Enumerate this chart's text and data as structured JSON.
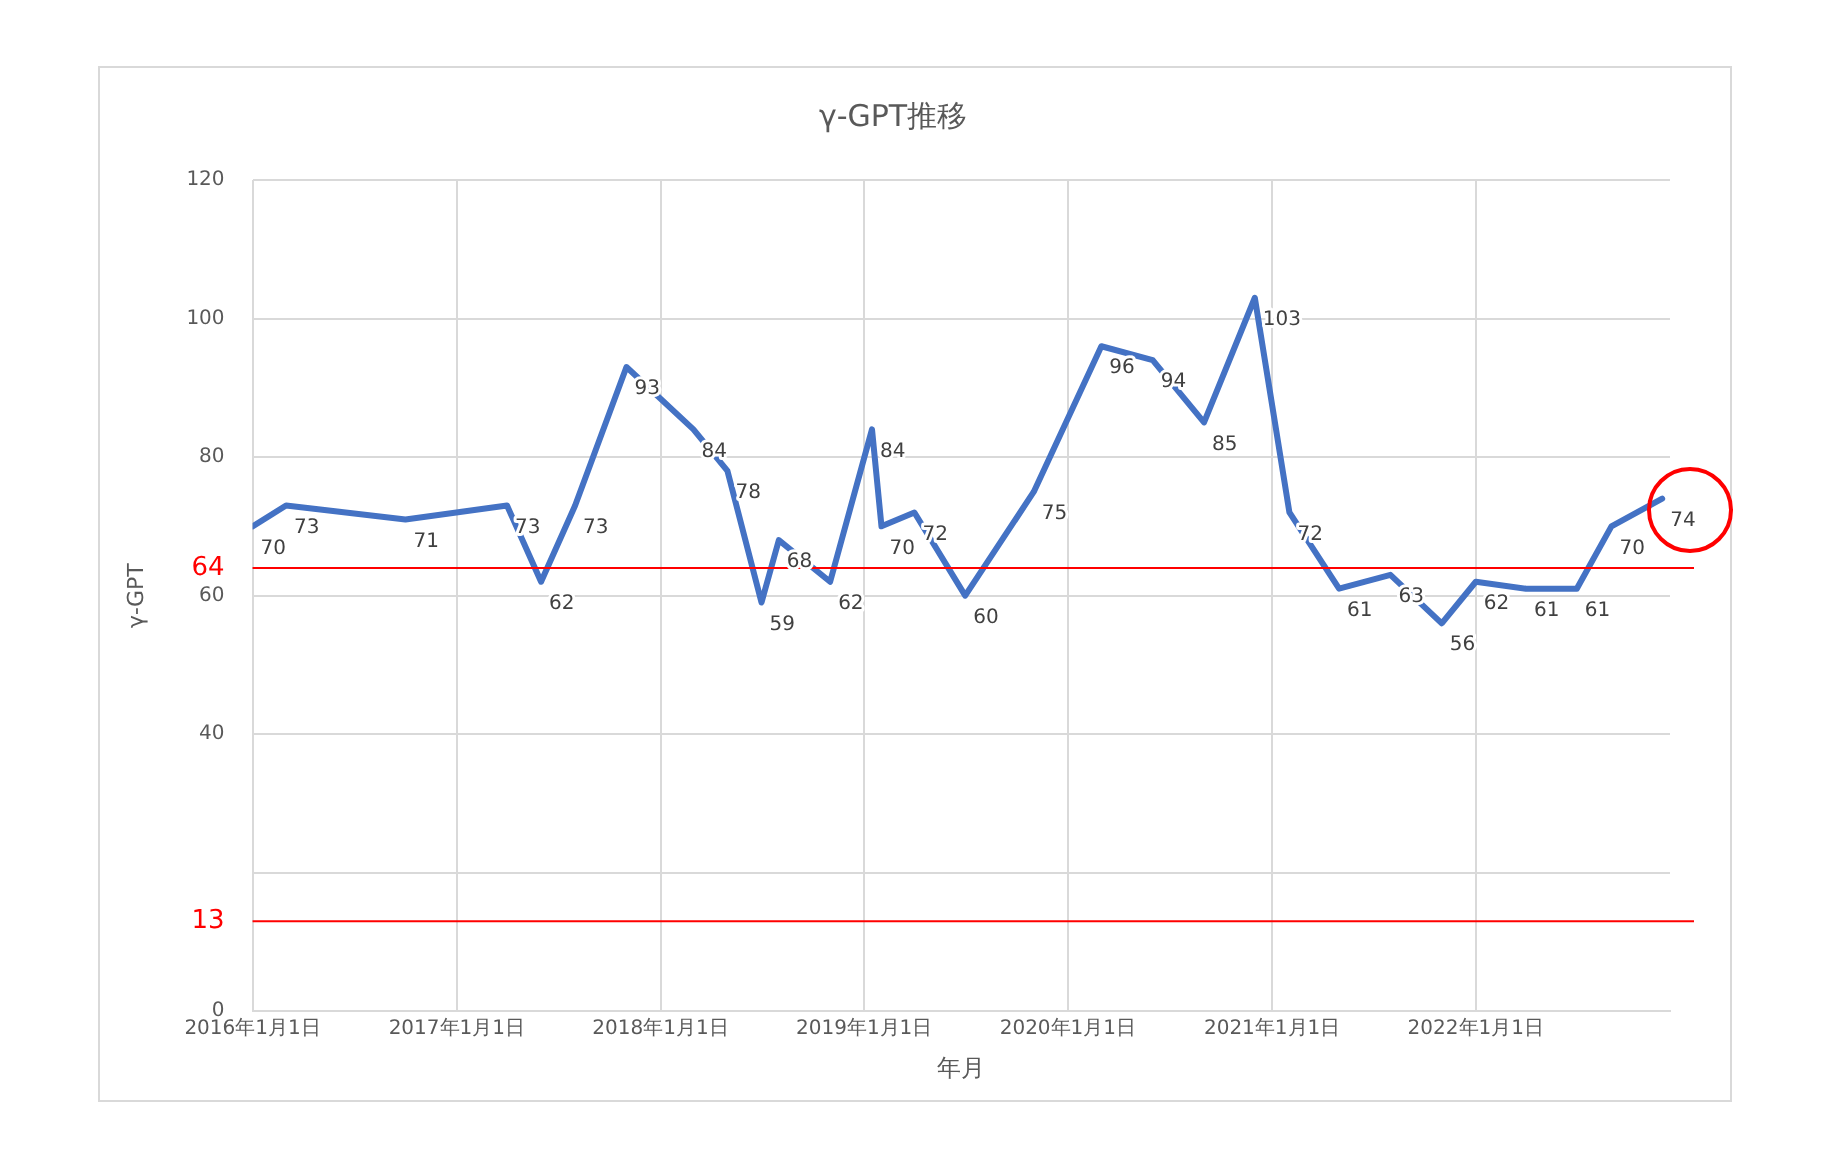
{
  "chart_data": {
    "type": "line",
    "title": "γ-GPT推移",
    "xlabel": "年月",
    "ylabel": "γ-GPT",
    "x": [
      "2016-01-01",
      "2016-03-01",
      "2016-10-01",
      "2017-04-01",
      "2017-06-01",
      "2017-08-01",
      "2017-11-01",
      "2018-03-01",
      "2018-05-01",
      "2018-07-01",
      "2018-08-01",
      "2018-11-01",
      "2019-01-15",
      "2019-02-01",
      "2019-04-01",
      "2019-07-01",
      "2019-11-01",
      "2020-03-01",
      "2020-06-01",
      "2020-09-01",
      "2020-12-01",
      "2021-02-01",
      "2021-05-01",
      "2021-08-01",
      "2021-11-01",
      "2022-01-01",
      "2022-04-01",
      "2022-07-01",
      "2022-09-01",
      "2022-12-01"
    ],
    "series": [
      {
        "color": "#4472c4",
        "values": [
          70,
          73,
          71,
          73,
          62,
          73,
          93,
          84,
          78,
          59,
          68,
          62,
          84,
          70,
          72,
          60,
          75,
          96,
          94,
          85,
          103,
          72,
          61,
          63,
          56,
          62,
          61,
          61,
          70,
          74
        ]
      }
    ],
    "xlim": [
      "2016-01-01",
      "2022-12-15"
    ],
    "xticks": [
      {
        "value": "2016-01-01",
        "label": "2016年1月1日"
      },
      {
        "value": "2017-01-01",
        "label": "2017年1月1日"
      },
      {
        "value": "2018-01-01",
        "label": "2018年1月1日"
      },
      {
        "value": "2019-01-01",
        "label": "2019年1月1日"
      },
      {
        "value": "2020-01-01",
        "label": "2020年1月1日"
      },
      {
        "value": "2021-01-01",
        "label": "2021年1月1日"
      },
      {
        "value": "2022-01-01",
        "label": "2022年1月1日"
      }
    ],
    "ylim": [
      0,
      120
    ],
    "yticks": [
      0,
      {
        "value": 20,
        "label": null
      },
      40,
      60,
      80,
      100,
      120
    ],
    "ref_lines": [
      {
        "axis": "y",
        "value": 64,
        "label": "64",
        "color": "#ff0000"
      },
      {
        "axis": "y",
        "value": 13,
        "label": "13",
        "color": "#ff0000"
      }
    ],
    "grid": true,
    "data_labels": true,
    "marker": "none",
    "line_style": "solid",
    "legend": false
  }
}
